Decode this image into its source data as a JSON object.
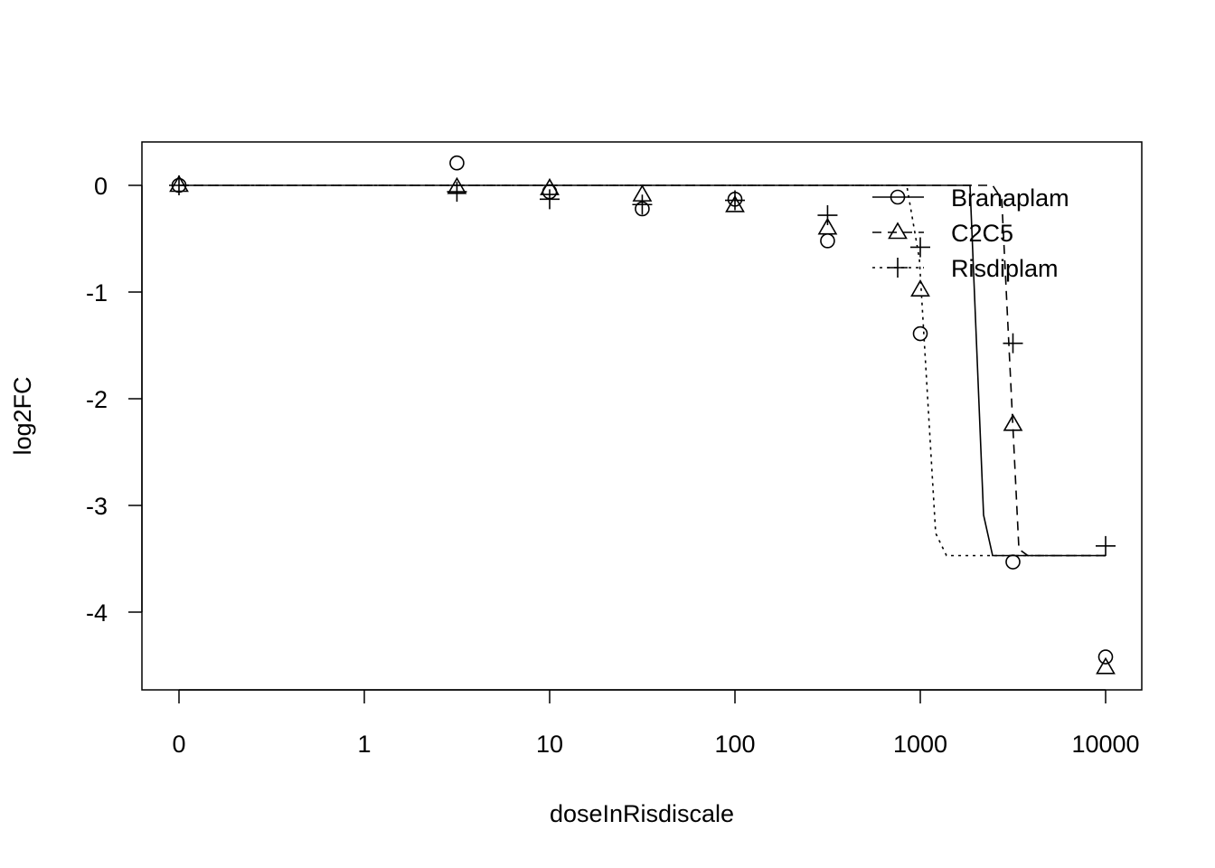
{
  "chart_data": {
    "type": "scatter",
    "title": "",
    "xlabel": "doseInRisdiscale",
    "ylabel": "log2FC",
    "x_scale": "log",
    "x_zero_shown_as": "0",
    "x_ticks": [
      0,
      1,
      10,
      100,
      1000,
      10000
    ],
    "x_tick_labels": [
      "0",
      "1",
      "10",
      "100",
      "1000",
      "10000"
    ],
    "y_ticks": [
      0,
      -1,
      -2,
      -3,
      -4
    ],
    "y_tick_labels": [
      "0",
      "-1",
      "-2",
      "-3",
      "-4"
    ],
    "ylim": [
      -4.6,
      0.4
    ],
    "grid": false,
    "legend_placement": "top-right",
    "series": [
      {
        "name": "Branaplam",
        "marker": "circle",
        "line": "solid",
        "x": [
          0,
          3.16,
          10,
          31.6,
          100,
          316,
          1000,
          3162,
          10000
        ],
        "y": [
          0,
          0.21,
          -0.06,
          -0.22,
          -0.13,
          -0.52,
          -1.39,
          -3.53,
          -4.42
        ],
        "curve": [
          [
            0,
            0
          ],
          [
            1855,
            0
          ],
          [
            2195,
            -3.09
          ],
          [
            2455,
            -3.47
          ],
          [
            10000,
            -3.47
          ]
        ]
      },
      {
        "name": "C2C5",
        "marker": "triangle",
        "line": "dashed",
        "x": [
          0,
          3.16,
          10,
          31.6,
          100,
          316,
          1000,
          3162,
          10000
        ],
        "y": [
          0,
          -0.02,
          -0.03,
          -0.09,
          -0.19,
          -0.4,
          -0.98,
          -2.24,
          -4.52
        ],
        "curve": [
          [
            0,
            0
          ],
          [
            2455,
            0
          ],
          [
            2750,
            -0.13
          ],
          [
            3404,
            -3.41
          ],
          [
            3805,
            -3.47
          ],
          [
            10000,
            -3.47
          ]
        ]
      },
      {
        "name": "Risdiplam",
        "marker": "plus",
        "line": "dotted",
        "x": [
          0,
          3.16,
          10,
          31.6,
          100,
          316,
          1000,
          3162,
          10000
        ],
        "y": [
          0,
          -0.06,
          -0.13,
          -0.18,
          -0.14,
          -0.28,
          -0.58,
          -1.48,
          -3.38
        ],
        "curve": [
          [
            0,
            0
          ],
          [
            845,
            0
          ],
          [
            989,
            -0.69
          ],
          [
            1211,
            -3.26
          ],
          [
            1385,
            -3.47
          ],
          [
            10000,
            -3.47
          ]
        ]
      }
    ]
  }
}
